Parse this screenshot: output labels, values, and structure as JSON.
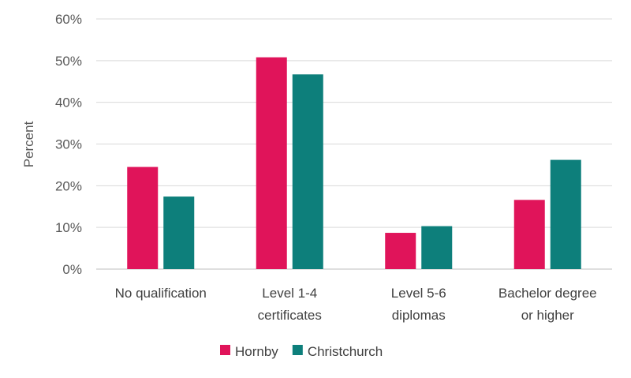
{
  "chart_data": {
    "type": "bar",
    "categories": [
      [
        "No qualification"
      ],
      [
        "Level 1-4",
        "certificates"
      ],
      [
        "Level 5-6",
        "diplomas"
      ],
      [
        "Bachelor degree",
        "or higher"
      ]
    ],
    "series": [
      {
        "name": "Hornby",
        "values": [
          24.5,
          50.8,
          8.7,
          16.6
        ],
        "color": "#e0145a"
      },
      {
        "name": "Christchurch",
        "values": [
          17.4,
          46.7,
          10.3,
          26.2
        ],
        "color": "#0d7f7b"
      }
    ],
    "title": "",
    "xlabel": "",
    "ylabel": "Percent",
    "ylim": [
      0,
      60
    ],
    "yticks": [
      "0%",
      "10%",
      "20%",
      "30%",
      "40%",
      "50%",
      "60%"
    ],
    "grid": true,
    "legend_position": "bottom"
  }
}
